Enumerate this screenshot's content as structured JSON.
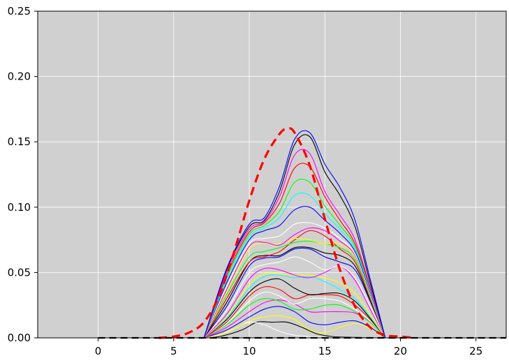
{
  "chart_data": {
    "type": "line",
    "title": "",
    "xlabel": "",
    "ylabel": "",
    "xlim": [
      -4,
      27
    ],
    "ylim": [
      0,
      0.25
    ],
    "grid": true,
    "legend": "none",
    "background": "#d0d0d0",
    "grid_color": "#ffffff",
    "x_ticks": [
      0,
      5,
      10,
      15,
      20,
      25
    ],
    "x_tick_labels": [
      "0",
      "5",
      "10",
      "15",
      "20",
      "25"
    ],
    "y_ticks": [
      0,
      0.05,
      0.1,
      0.15,
      0.2,
      0.25
    ],
    "y_tick_labels": [
      "0.00",
      "0.05",
      "0.10",
      "0.15",
      "0.20",
      "0.25"
    ],
    "series": [
      {
        "color": "#000000",
        "width": 1.1,
        "dash": "",
        "x": [
          6.5,
          8,
          9.5,
          10.5,
          11.5,
          12.5,
          13.5,
          14.5,
          15.5,
          16.5,
          17.5,
          18.5
        ],
        "y": [
          0,
          0.001,
          0.006,
          0.012,
          0.012,
          0.012,
          0.008,
          0.003,
          0.001,
          0.0005,
          0.0002,
          0
        ]
      },
      {
        "color": "#ffffff",
        "width": 1.1,
        "dash": "",
        "x": [
          7,
          8,
          9,
          10,
          11,
          12,
          13,
          14,
          15,
          16,
          17,
          18.5
        ],
        "y": [
          0,
          0.002,
          0.007,
          0.012,
          0.01,
          0.005,
          0.002,
          0.001,
          0.0005,
          0.0002,
          0.0001,
          0
        ]
      },
      {
        "color": "#ffff00",
        "width": 1.1,
        "dash": "",
        "x": [
          7,
          8.5,
          10,
          11,
          12,
          13,
          14,
          15,
          16,
          17,
          18,
          19
        ],
        "y": [
          0,
          0.004,
          0.013,
          0.016,
          0.017,
          0.014,
          0.006,
          0.004,
          0.008,
          0.011,
          0.007,
          0
        ]
      },
      {
        "color": "#0000ff",
        "width": 1.1,
        "dash": "",
        "x": [
          7,
          8.5,
          10,
          11,
          12,
          13,
          14,
          15,
          16,
          17,
          18,
          19
        ],
        "y": [
          0,
          0.006,
          0.016,
          0.022,
          0.024,
          0.02,
          0.012,
          0.01,
          0.012,
          0.013,
          0.008,
          0
        ]
      },
      {
        "color": "#ff00ff",
        "width": 1.1,
        "dash": "",
        "x": [
          7,
          8.5,
          10,
          11,
          12,
          13,
          14,
          15,
          16,
          17,
          18,
          19
        ],
        "y": [
          0,
          0.008,
          0.02,
          0.027,
          0.029,
          0.026,
          0.02,
          0.02,
          0.02,
          0.019,
          0.012,
          0
        ]
      },
      {
        "color": "#00ff00",
        "width": 1.1,
        "dash": "",
        "x": [
          7,
          8.5,
          10,
          11,
          12,
          13,
          14,
          15,
          16,
          17,
          18,
          19
        ],
        "y": [
          0,
          0.01,
          0.025,
          0.03,
          0.028,
          0.022,
          0.022,
          0.025,
          0.025,
          0.02,
          0.012,
          0
        ]
      },
      {
        "color": "#ffffff",
        "width": 1.1,
        "dash": "",
        "x": [
          7,
          8.5,
          10,
          11,
          12,
          13,
          14,
          15,
          16,
          17,
          18,
          19
        ],
        "y": [
          0,
          0.011,
          0.028,
          0.035,
          0.032,
          0.026,
          0.03,
          0.03,
          0.028,
          0.022,
          0.013,
          0
        ]
      },
      {
        "color": "#ff0000",
        "width": 1.1,
        "dash": "",
        "x": [
          7,
          8.5,
          10,
          11,
          12,
          13,
          14,
          15,
          16,
          17,
          18,
          19
        ],
        "y": [
          0,
          0.012,
          0.032,
          0.039,
          0.037,
          0.03,
          0.033,
          0.033,
          0.032,
          0.025,
          0.014,
          0
        ]
      },
      {
        "color": "#000000",
        "width": 1.1,
        "dash": "",
        "x": [
          7,
          8.5,
          10,
          11,
          12,
          13,
          14,
          15,
          16,
          17,
          18,
          19
        ],
        "y": [
          0,
          0.014,
          0.035,
          0.043,
          0.045,
          0.038,
          0.033,
          0.034,
          0.034,
          0.028,
          0.015,
          0
        ]
      },
      {
        "color": "#00ffff",
        "width": 1.1,
        "dash": "",
        "x": [
          7,
          8.5,
          10,
          11,
          12,
          13,
          14,
          15,
          16,
          17,
          18,
          19
        ],
        "y": [
          0,
          0.015,
          0.038,
          0.047,
          0.048,
          0.046,
          0.047,
          0.043,
          0.037,
          0.03,
          0.016,
          0
        ]
      },
      {
        "color": "#ffff00",
        "width": 1.1,
        "dash": "",
        "x": [
          7,
          8.5,
          10,
          11,
          12,
          13,
          14,
          15,
          16,
          17,
          18,
          19
        ],
        "y": [
          0,
          0.016,
          0.041,
          0.049,
          0.049,
          0.048,
          0.048,
          0.046,
          0.042,
          0.034,
          0.018,
          0
        ]
      },
      {
        "color": "#ff00ff",
        "width": 1.1,
        "dash": "",
        "x": [
          7,
          8.5,
          10,
          11,
          12,
          13,
          14,
          15,
          16,
          17,
          18,
          19
        ],
        "y": [
          0,
          0.018,
          0.045,
          0.053,
          0.052,
          0.048,
          0.046,
          0.05,
          0.055,
          0.044,
          0.022,
          0
        ]
      },
      {
        "color": "#ffffff",
        "width": 1.1,
        "dash": "",
        "x": [
          7,
          8.5,
          10,
          11,
          12,
          13,
          14,
          15,
          16,
          17,
          18,
          19
        ],
        "y": [
          0,
          0.021,
          0.05,
          0.056,
          0.058,
          0.062,
          0.058,
          0.052,
          0.055,
          0.046,
          0.024,
          0
        ]
      },
      {
        "color": "#0000ff",
        "width": 1.1,
        "dash": "",
        "x": [
          7,
          8.5,
          10,
          11,
          12,
          13,
          14,
          15,
          16,
          17,
          18,
          19
        ],
        "y": [
          0,
          0.024,
          0.055,
          0.061,
          0.062,
          0.068,
          0.068,
          0.062,
          0.058,
          0.052,
          0.028,
          0
        ]
      },
      {
        "color": "#000000",
        "width": 1.1,
        "dash": "",
        "x": [
          7,
          8.5,
          10,
          11,
          12,
          13,
          14,
          15,
          16,
          17,
          18,
          19
        ],
        "y": [
          0,
          0.027,
          0.058,
          0.063,
          0.063,
          0.069,
          0.069,
          0.065,
          0.063,
          0.055,
          0.029,
          0
        ]
      },
      {
        "color": "#ff0000",
        "width": 1.1,
        "dash": "",
        "x": [
          7,
          8.5,
          10,
          11,
          12,
          13,
          14,
          15,
          16,
          17,
          18,
          19
        ],
        "y": [
          0,
          0.03,
          0.058,
          0.062,
          0.066,
          0.075,
          0.082,
          0.078,
          0.068,
          0.058,
          0.03,
          0
        ]
      },
      {
        "color": "#00ff00",
        "width": 1.1,
        "dash": "",
        "x": [
          7,
          8.5,
          10,
          11,
          12,
          13,
          14,
          15,
          16,
          17,
          18,
          19
        ],
        "y": [
          0,
          0.033,
          0.062,
          0.066,
          0.069,
          0.073,
          0.074,
          0.072,
          0.069,
          0.06,
          0.031,
          0
        ]
      },
      {
        "color": "#ffff00",
        "width": 1.1,
        "dash": "",
        "x": [
          7,
          8.5,
          10,
          11,
          12,
          13,
          14,
          15,
          16,
          17,
          18,
          19
        ],
        "y": [
          0,
          0.035,
          0.068,
          0.072,
          0.072,
          0.076,
          0.075,
          0.072,
          0.072,
          0.062,
          0.032,
          0
        ]
      },
      {
        "color": "#ff00ff",
        "width": 1.1,
        "dash": "",
        "x": [
          7,
          8.5,
          10,
          11,
          12,
          13,
          14,
          15,
          16,
          17,
          18,
          19
        ],
        "y": [
          0,
          0.037,
          0.07,
          0.073,
          0.071,
          0.079,
          0.084,
          0.082,
          0.074,
          0.063,
          0.033,
          0
        ]
      },
      {
        "color": "#ffffff",
        "width": 1.1,
        "dash": "",
        "x": [
          7,
          8.5,
          10,
          11,
          12,
          13,
          14,
          15,
          16,
          17,
          18,
          19
        ],
        "y": [
          0,
          0.039,
          0.072,
          0.076,
          0.078,
          0.087,
          0.088,
          0.084,
          0.076,
          0.064,
          0.034,
          0
        ]
      },
      {
        "color": "#0000ff",
        "width": 1.1,
        "dash": "",
        "x": [
          7,
          8.5,
          10,
          11,
          12,
          13,
          14,
          15,
          16,
          17,
          18,
          19
        ],
        "y": [
          0,
          0.042,
          0.075,
          0.082,
          0.086,
          0.098,
          0.1,
          0.09,
          0.08,
          0.066,
          0.035,
          0
        ]
      },
      {
        "color": "#00ffff",
        "width": 1.1,
        "dash": "",
        "x": [
          7,
          8.5,
          10,
          11,
          12,
          13,
          14,
          15,
          16,
          17,
          18,
          19
        ],
        "y": [
          0,
          0.044,
          0.077,
          0.084,
          0.092,
          0.109,
          0.109,
          0.095,
          0.083,
          0.068,
          0.036,
          0
        ]
      },
      {
        "color": "#00ff00",
        "width": 1.1,
        "dash": "",
        "x": [
          7,
          8.5,
          10,
          11,
          12,
          13,
          14,
          15,
          16,
          17,
          18,
          19
        ],
        "y": [
          0,
          0.046,
          0.079,
          0.086,
          0.097,
          0.119,
          0.119,
          0.101,
          0.086,
          0.07,
          0.037,
          0
        ]
      },
      {
        "color": "#ff0000",
        "width": 1.1,
        "dash": "",
        "x": [
          7,
          8.5,
          10,
          11,
          12,
          13,
          14,
          15,
          16,
          17,
          18,
          19
        ],
        "y": [
          0,
          0.048,
          0.081,
          0.088,
          0.103,
          0.13,
          0.131,
          0.108,
          0.09,
          0.072,
          0.038,
          0
        ]
      },
      {
        "color": "#ff00ff",
        "width": 1.1,
        "dash": "",
        "x": [
          7,
          8.5,
          10,
          11,
          12,
          13,
          14,
          15,
          16,
          17,
          18,
          19
        ],
        "y": [
          0,
          0.05,
          0.083,
          0.089,
          0.108,
          0.14,
          0.141,
          0.112,
          0.094,
          0.075,
          0.039,
          0
        ]
      },
      {
        "color": "#000000",
        "width": 1.1,
        "dash": "",
        "x": [
          7,
          8.5,
          10,
          11,
          12,
          13,
          14,
          15,
          16,
          17,
          18,
          19
        ],
        "y": [
          0,
          0.052,
          0.085,
          0.09,
          0.112,
          0.148,
          0.154,
          0.127,
          0.109,
          0.085,
          0.042,
          0
        ]
      },
      {
        "color": "#0000ff",
        "width": 1.1,
        "dash": "",
        "x": [
          7,
          8.5,
          10,
          11,
          12,
          13,
          14,
          15,
          16,
          17,
          18,
          19
        ],
        "y": [
          0,
          0.053,
          0.087,
          0.092,
          0.116,
          0.152,
          0.157,
          0.133,
          0.115,
          0.09,
          0.045,
          0
        ]
      },
      {
        "color": "#ff0000",
        "width": 3.2,
        "dash": "12,7",
        "x": [
          4,
          5,
          6,
          7,
          8,
          9,
          10,
          11,
          12,
          12.5,
          13,
          14,
          15,
          16,
          17,
          18,
          19,
          20,
          21
        ],
        "y": [
          0,
          0.001,
          0.004,
          0.012,
          0.032,
          0.066,
          0.105,
          0.137,
          0.156,
          0.16,
          0.157,
          0.132,
          0.091,
          0.052,
          0.024,
          0.008,
          0.002,
          0.001,
          0
        ]
      },
      {
        "color": "#000000",
        "width": 2.2,
        "dash": "10,6",
        "x": [
          0,
          27
        ],
        "y": [
          0,
          0
        ]
      }
    ]
  }
}
